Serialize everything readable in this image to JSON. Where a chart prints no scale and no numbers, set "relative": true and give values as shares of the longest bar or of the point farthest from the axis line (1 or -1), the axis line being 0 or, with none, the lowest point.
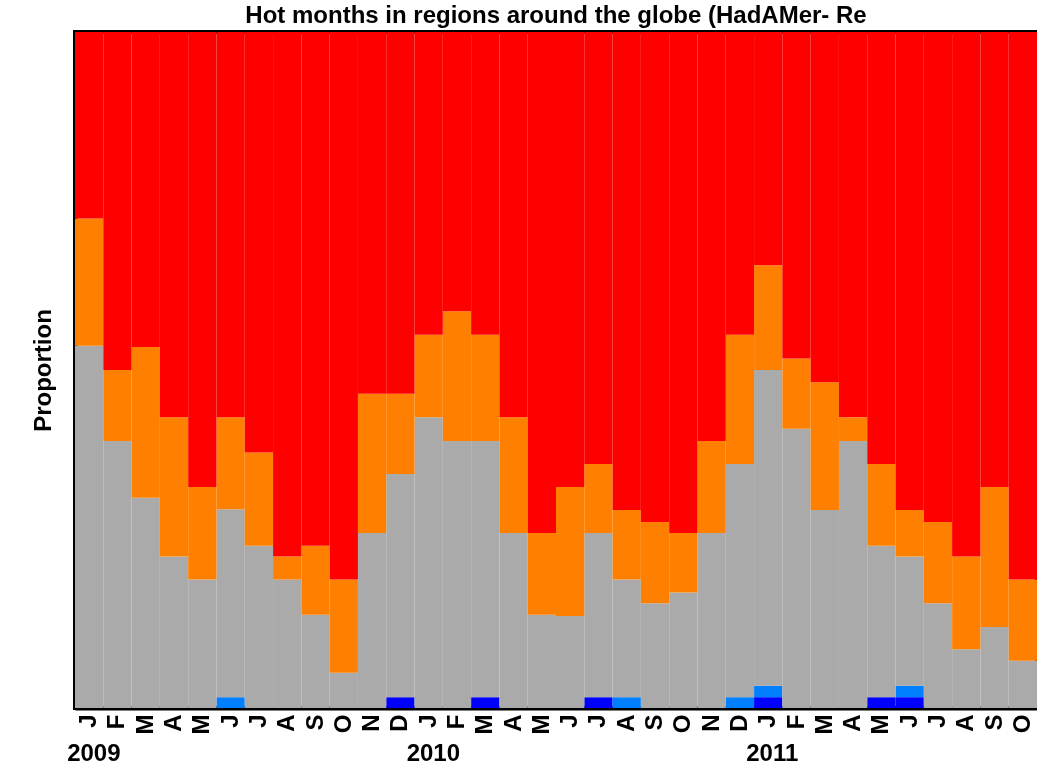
{
  "chart_data": {
    "type": "bar",
    "stacked": true,
    "relative": true,
    "title": "Hot months in regions around the globe (HadAMer- Re",
    "ylabel": "Proportion",
    "categories": [
      "J",
      "F",
      "M",
      "A",
      "M",
      "J",
      "J",
      "A",
      "S",
      "O",
      "N",
      "D",
      "J",
      "F",
      "M",
      "A",
      "M",
      "J",
      "J",
      "A",
      "S",
      "O",
      "N",
      "D",
      "J",
      "F",
      "M",
      "A",
      "M",
      "J",
      "J",
      "A",
      "S",
      "O"
    ],
    "annotations": [
      "2009",
      "2010",
      "2011"
    ],
    "series": [
      {
        "color": "#0000ff",
        "values": [
          0,
          0,
          0,
          0,
          0,
          0,
          0,
          0,
          0,
          0,
          0,
          0.016,
          0,
          0,
          0.016,
          0,
          0,
          0,
          0.016,
          0,
          0,
          0,
          0,
          0,
          0.016,
          0,
          0,
          0,
          0.016,
          0.016,
          0,
          0,
          0,
          0
        ]
      },
      {
        "color": "#0080ff",
        "values": [
          0,
          0,
          0,
          0,
          0,
          0.016,
          0,
          0,
          0,
          0,
          0,
          0,
          0,
          0,
          0,
          0,
          0,
          0,
          0,
          0.016,
          0,
          0,
          0,
          0.016,
          0.017,
          0,
          0,
          0,
          0,
          0.017,
          0,
          0,
          0,
          0
        ]
      },
      {
        "color": "#aaaaaa",
        "values": [
          0.536,
          0.395,
          0.311,
          0.224,
          0.19,
          0.278,
          0.24,
          0.19,
          0.138,
          0.052,
          0.259,
          0.33,
          0.43,
          0.395,
          0.379,
          0.259,
          0.138,
          0.136,
          0.243,
          0.174,
          0.155,
          0.171,
          0.259,
          0.345,
          0.467,
          0.413,
          0.293,
          0.395,
          0.224,
          0.191,
          0.155,
          0.087,
          0.12,
          0.07
        ]
      },
      {
        "color": "#ff8000",
        "values": [
          0.188,
          0.105,
          0.223,
          0.206,
          0.137,
          0.136,
          0.138,
          0.034,
          0.102,
          0.138,
          0.206,
          0.119,
          0.122,
          0.192,
          0.157,
          0.171,
          0.121,
          0.191,
          0.102,
          0.103,
          0.12,
          0.088,
          0.136,
          0.191,
          0.155,
          0.104,
          0.189,
          0.035,
          0.121,
          0.069,
          0.12,
          0.137,
          0.207,
          0.12
        ]
      },
      {
        "color": "#ff0000",
        "values": [
          0.276,
          0.5,
          0.466,
          0.57,
          0.673,
          0.57,
          0.622,
          0.776,
          0.76,
          0.81,
          0.535,
          0.535,
          0.448,
          0.413,
          0.448,
          0.57,
          0.741,
          0.673,
          0.639,
          0.707,
          0.725,
          0.741,
          0.605,
          0.448,
          0.345,
          0.483,
          0.518,
          0.57,
          0.639,
          0.707,
          0.725,
          0.776,
          0.673,
          0.81
        ]
      }
    ]
  }
}
